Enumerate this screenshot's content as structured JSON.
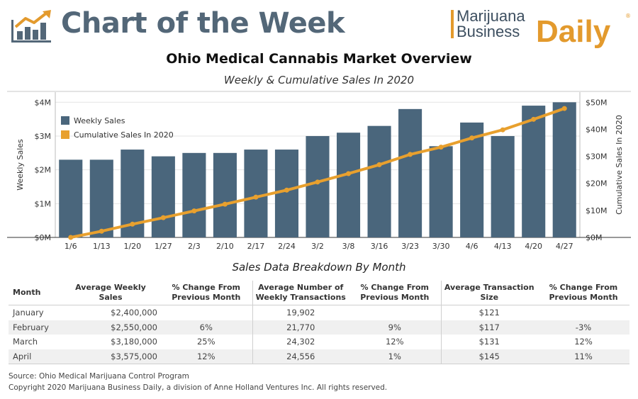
{
  "header": {
    "title": "Chart of the Week",
    "logo_line1": "Marijuana",
    "logo_line2": "Business",
    "logo_line3": "Daily",
    "logo_reg": "®"
  },
  "main_title": "Ohio Medical Cannabis Market Overview",
  "sub_title": "Weekly & Cumulative Sales In 2020",
  "colors": {
    "bar": "#4a667c",
    "line": "#e8a02e",
    "title": "#536778",
    "brand_orange": "#e39a2d"
  },
  "chart_data": {
    "type": "bar",
    "title": "Weekly & Cumulative Sales In 2020",
    "categories": [
      "1/6",
      "1/13",
      "1/20",
      "1/27",
      "2/3",
      "2/10",
      "2/17",
      "2/24",
      "3/2",
      "3/8",
      "3/16",
      "3/23",
      "3/30",
      "4/6",
      "4/13",
      "4/20",
      "4/27"
    ],
    "ylabel": "Weekly Sales",
    "y2label": "Cumulative Sales In 2020",
    "ylim": [
      0,
      4.3
    ],
    "y2lim": [
      0,
      53.75
    ],
    "yticks": [
      0,
      1,
      2,
      3,
      4
    ],
    "ytick_labels": [
      "$0M",
      "$1M",
      "$2M",
      "$3M",
      "$4M"
    ],
    "y2ticks": [
      0,
      10,
      20,
      30,
      40,
      50
    ],
    "y2tick_labels": [
      "$0M",
      "$10M",
      "$20M",
      "$30M",
      "$40M",
      "$50M"
    ],
    "legend_position": "top-left",
    "grid": true,
    "series": [
      {
        "name": "Weekly Sales",
        "type": "bar",
        "axis": "left",
        "values": [
          2.3,
          2.3,
          2.6,
          2.4,
          2.5,
          2.5,
          2.6,
          2.6,
          3.0,
          3.1,
          3.3,
          3.8,
          2.7,
          3.4,
          3.0,
          3.9,
          4.0
        ]
      },
      {
        "name": "Cumulative Sales In 2020",
        "type": "line",
        "axis": "right",
        "values": [
          0,
          2.3,
          4.9,
          7.3,
          9.8,
          12.3,
          14.9,
          17.5,
          20.5,
          23.6,
          26.9,
          30.7,
          33.4,
          36.8,
          39.8,
          43.7,
          47.7
        ]
      }
    ]
  },
  "table": {
    "title": "Sales Data Breakdown By Month",
    "headers": [
      "Month",
      "Average Weekly Sales",
      "% Change From Previous Month",
      "Average Number of Weekly Transactions",
      "% Change From Previous Month",
      "Average Transaction Size",
      "% Change From Previous Month"
    ],
    "rows": [
      {
        "month": "January",
        "avg_sales": "$2,400,000",
        "sales_change": "",
        "avg_txn": "19,902",
        "txn_change": "",
        "avg_size": "$121",
        "size_change": ""
      },
      {
        "month": "February",
        "avg_sales": "$2,550,000",
        "sales_change": "6%",
        "avg_txn": "21,770",
        "txn_change": "9%",
        "avg_size": "$117",
        "size_change": "-3%"
      },
      {
        "month": "March",
        "avg_sales": "$3,180,000",
        "sales_change": "25%",
        "avg_txn": "24,302",
        "txn_change": "12%",
        "avg_size": "$131",
        "size_change": "12%"
      },
      {
        "month": "April",
        "avg_sales": "$3,575,000",
        "sales_change": "12%",
        "avg_txn": "24,556",
        "txn_change": "1%",
        "avg_size": "$145",
        "size_change": "11%"
      }
    ]
  },
  "footer": {
    "source": "Source: Ohio Medical Marijuana Control Program",
    "copyright": "Copyright 2020 Marijuana Business Daily, a division of Anne Holland Ventures Inc. All rights reserved."
  }
}
